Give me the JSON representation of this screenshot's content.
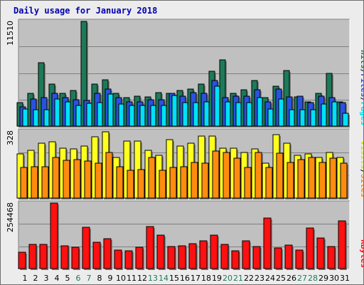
{
  "title": "Daily usage for January 2018",
  "colors": {
    "hits": "#1d7a58",
    "files": "#2a52e0",
    "pages": "#00e0f8",
    "visits": "#ffff20",
    "sites": "#ff8c10",
    "kbytes": "#ff1010",
    "weekday_label": "#000000",
    "weekend_label": "#1d7a58",
    "background": "#c0c0c0"
  },
  "chart_data": [
    {
      "type": "bar",
      "panel": "top",
      "ymax_label": "11510",
      "ylim": [
        0,
        11510
      ],
      "categories": [
        "1",
        "2",
        "3",
        "4",
        "5",
        "6",
        "7",
        "8",
        "9",
        "10",
        "11",
        "12",
        "13",
        "14",
        "15",
        "16",
        "17",
        "18",
        "19",
        "20",
        "21",
        "22",
        "23",
        "24",
        "25",
        "26",
        "27",
        "28",
        "29",
        "30",
        "31"
      ],
      "weekend_days": [
        "6",
        "7",
        "13",
        "14",
        "20",
        "21",
        "27",
        "28"
      ],
      "legend": [
        "Pages",
        "Files",
        "Hits"
      ],
      "legend_separator": "/",
      "series": [
        {
          "name": "Hits",
          "values": [
            2600,
            3600,
            7000,
            4600,
            3600,
            3900,
            11510,
            4600,
            5100,
            3600,
            3100,
            3300,
            3200,
            3700,
            3600,
            3900,
            4100,
            4600,
            6000,
            7300,
            3600,
            4000,
            5000,
            3100,
            4400,
            6100,
            3200,
            2700,
            3600,
            5800,
            2700
          ]
        },
        {
          "name": "Files",
          "values": [
            2100,
            3000,
            3100,
            3600,
            3100,
            2900,
            2800,
            3600,
            4100,
            3100,
            2700,
            2700,
            2900,
            2900,
            3600,
            3300,
            3700,
            3600,
            5000,
            3100,
            3300,
            3300,
            4000,
            2700,
            4100,
            3200,
            3300,
            2600,
            3300,
            3100,
            2600
          ]
        },
        {
          "name": "Pages",
          "values": [
            1900,
            1800,
            1800,
            3000,
            2700,
            2300,
            2500,
            2600,
            3500,
            2400,
            2300,
            2300,
            2300,
            2300,
            3400,
            2600,
            2600,
            2700,
            4400,
            2700,
            2600,
            2600,
            3100,
            1900,
            3000,
            1800,
            1800,
            1800,
            2400,
            2700,
            1400
          ]
        }
      ]
    },
    {
      "type": "bar",
      "panel": "middle",
      "ymax_label": "328",
      "ylim": [
        0,
        328
      ],
      "categories": [
        "1",
        "2",
        "3",
        "4",
        "5",
        "6",
        "7",
        "8",
        "9",
        "10",
        "11",
        "12",
        "13",
        "14",
        "15",
        "16",
        "17",
        "18",
        "19",
        "20",
        "21",
        "22",
        "23",
        "24",
        "25",
        "26",
        "27",
        "28",
        "29",
        "30",
        "31"
      ],
      "legend": [
        "Sites",
        "Visits"
      ],
      "legend_separator": "/",
      "series": [
        {
          "name": "Visits",
          "values": [
            215,
            235,
            270,
            275,
            245,
            240,
            255,
            300,
            325,
            200,
            280,
            280,
            235,
            210,
            285,
            255,
            270,
            305,
            305,
            245,
            245,
            225,
            240,
            170,
            310,
            270,
            210,
            215,
            200,
            225,
            200
          ]
        },
        {
          "name": "Sites",
          "values": [
            150,
            155,
            155,
            200,
            185,
            190,
            180,
            170,
            225,
            155,
            135,
            140,
            200,
            135,
            150,
            155,
            175,
            170,
            230,
            225,
            195,
            150,
            225,
            150,
            220,
            175,
            190,
            200,
            175,
            195,
            170
          ]
        }
      ]
    },
    {
      "type": "bar",
      "panel": "bottom",
      "ymax_label": "254468",
      "ylim": [
        0,
        254468
      ],
      "categories": [
        "1",
        "2",
        "3",
        "4",
        "5",
        "6",
        "7",
        "8",
        "9",
        "10",
        "11",
        "12",
        "13",
        "14",
        "15",
        "16",
        "17",
        "18",
        "19",
        "20",
        "21",
        "22",
        "23",
        "24",
        "25",
        "26",
        "27",
        "28",
        "29",
        "30",
        "31"
      ],
      "legend": [
        "KBytes"
      ],
      "series": [
        {
          "name": "KBytes",
          "values": [
            64000,
            95000,
            93000,
            254468,
            89000,
            84000,
            160000,
            101000,
            117000,
            73000,
            68000,
            83000,
            163000,
            131000,
            87000,
            89000,
            97000,
            108000,
            131000,
            93000,
            68000,
            108000,
            86000,
            195000,
            80000,
            91000,
            71000,
            158000,
            119000,
            86000,
            185000
          ]
        }
      ]
    }
  ]
}
